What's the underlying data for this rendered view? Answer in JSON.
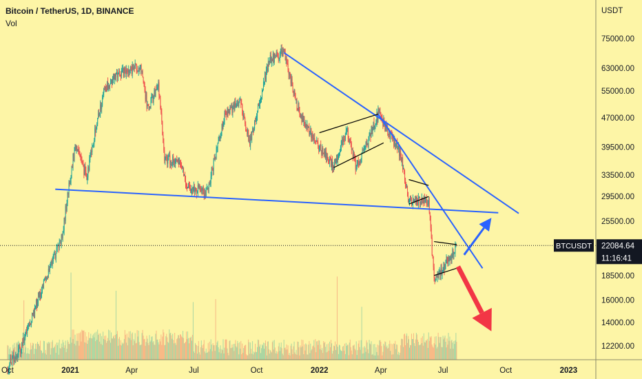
{
  "header": {
    "symbol_line": "Bitcoin / TetherUS, 1D, BINANCE",
    "volume_label": "Vol"
  },
  "price_scale": {
    "currency": "USDT",
    "ticks": [
      "75000.00",
      "63000.00",
      "55000.00",
      "47000.00",
      "39500.00",
      "33500.00",
      "29500.00",
      "25500.00",
      "18500.00",
      "16000.00",
      "14000.00",
      "12200.00"
    ],
    "last_symbol": "BTCUSDT",
    "last_price": "22084.64",
    "countdown": "11:16:41"
  },
  "time_scale": {
    "ticks": [
      {
        "label": "Oct",
        "bold": false
      },
      {
        "label": "2021",
        "bold": true
      },
      {
        "label": "Apr",
        "bold": false
      },
      {
        "label": "Jul",
        "bold": false
      },
      {
        "label": "Oct",
        "bold": false
      },
      {
        "label": "2022",
        "bold": true
      },
      {
        "label": "Apr",
        "bold": false
      },
      {
        "label": "Jul",
        "bold": false
      },
      {
        "label": "Oct",
        "bold": false
      },
      {
        "label": "2023",
        "bold": true
      }
    ]
  },
  "colors": {
    "background": "#fdf5a6",
    "up": "#26a69a",
    "down": "#ef5350",
    "trendline": "#2962ff",
    "pattern": "#000000",
    "arrow_up": "#2962ff",
    "arrow_down": "#f23645",
    "price_tag": "#131722"
  },
  "chart_data": {
    "type": "candlestick",
    "scale": "log",
    "y_range": [
      11500,
      90000
    ],
    "x_range": [
      "2020-09-20",
      "2023-02-10"
    ],
    "series": [
      {
        "name": "BTCUSDT",
        "type": "close_path",
        "points": [
          [
            "2020-10-01",
            10800
          ],
          [
            "2020-10-20",
            12000
          ],
          [
            "2020-11-10",
            15300
          ],
          [
            "2020-12-01",
            19000
          ],
          [
            "2020-12-20",
            23500
          ],
          [
            "2021-01-08",
            40000
          ],
          [
            "2021-01-25",
            33000
          ],
          [
            "2021-02-08",
            45000
          ],
          [
            "2021-02-21",
            56000
          ],
          [
            "2021-03-13",
            61000
          ],
          [
            "2021-04-14",
            64000
          ],
          [
            "2021-04-25",
            49000
          ],
          [
            "2021-05-10",
            58000
          ],
          [
            "2021-05-19",
            37000
          ],
          [
            "2021-06-10",
            36000
          ],
          [
            "2021-06-22",
            31500
          ],
          [
            "2021-07-20",
            30000
          ],
          [
            "2021-08-14",
            47000
          ],
          [
            "2021-09-06",
            52000
          ],
          [
            "2021-09-21",
            40500
          ],
          [
            "2021-10-20",
            66000
          ],
          [
            "2021-11-10",
            69000
          ],
          [
            "2021-12-04",
            47000
          ],
          [
            "2022-01-22",
            35000
          ],
          [
            "2022-02-10",
            44000
          ],
          [
            "2022-02-24",
            35000
          ],
          [
            "2022-03-28",
            48000
          ],
          [
            "2022-04-30",
            38000
          ],
          [
            "2022-05-12",
            28500
          ],
          [
            "2022-06-10",
            29000
          ],
          [
            "2022-06-18",
            17800
          ],
          [
            "2022-07-10",
            20500
          ],
          [
            "2022-07-21",
            22084.64
          ]
        ]
      },
      {
        "name": "Vol",
        "type": "volume"
      }
    ],
    "drawings": {
      "trendlines": [
        {
          "from": [
            "2020-12-10",
            30800
          ],
          "to": [
            "2022-09-20",
            26800
          ]
        },
        {
          "from": [
            "2021-11-10",
            69000
          ],
          "to": [
            "2022-10-20",
            26700
          ]
        },
        {
          "from": [
            "2022-03-28",
            48000
          ],
          "to": [
            "2022-08-28",
            19300
          ]
        }
      ],
      "patterns": [
        {
          "from": [
            "2022-01-01",
            43000
          ],
          "to": [
            "2022-03-28",
            48000
          ]
        },
        {
          "from": [
            "2022-01-22",
            35000
          ],
          "to": [
            "2022-04-05",
            40500
          ]
        },
        {
          "from": [
            "2022-05-12",
            32600
          ],
          "to": [
            "2022-06-10",
            31500
          ]
        },
        {
          "from": [
            "2022-05-12",
            28200
          ],
          "to": [
            "2022-06-10",
            29500
          ]
        },
        {
          "from": [
            "2022-06-18",
            22600
          ],
          "to": [
            "2022-07-21",
            22200
          ]
        },
        {
          "from": [
            "2022-06-18",
            18500
          ],
          "to": [
            "2022-07-21",
            19300
          ]
        }
      ],
      "arrows": [
        {
          "direction": "up",
          "from": [
            "2022-08-01",
            20900
          ],
          "to": [
            "2022-09-10",
            26000
          ]
        },
        {
          "direction": "down",
          "from": [
            "2022-07-23",
            19500
          ],
          "to": [
            "2022-09-10",
            13300
          ]
        }
      ]
    }
  }
}
